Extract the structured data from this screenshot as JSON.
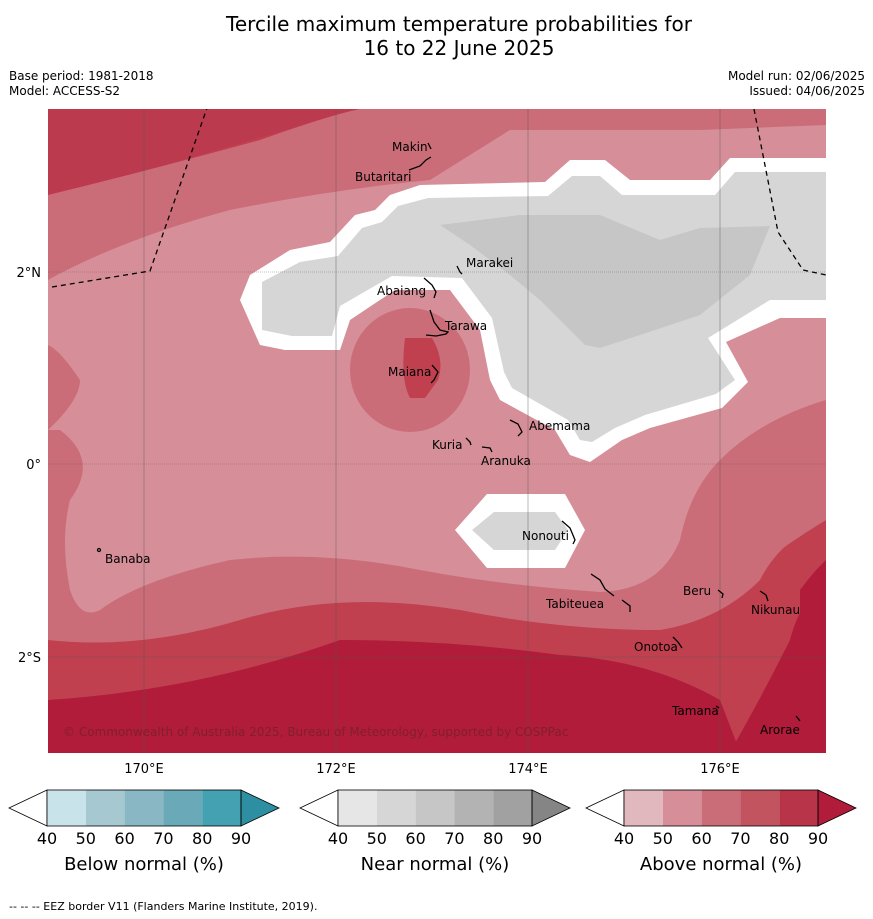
{
  "title_line1": "Tercile maximum temperature probabilities for",
  "title_line2": "16 to 22 June 2025",
  "base_period": "Base period: 1981-2018",
  "model": "Model: ACCESS-S2",
  "model_run": "Model run: 02/06/2025",
  "issued": "Issued: 04/06/2025",
  "copyright": "© Commonwealth of Australia 2025, Bureau of Meteorology, supported by COSPPac",
  "axis": {
    "lat_ticks": [
      "2°N",
      "0°",
      "2°S"
    ],
    "lon_ticks": [
      "170°E",
      "172°E",
      "174°E",
      "176°E"
    ]
  },
  "islands": [
    "Makin",
    "Butaritari",
    "Marakei",
    "Abaiang",
    "Tarawa",
    "Maiana",
    "Abemama",
    "Kuria",
    "Aranuka",
    "Nonouti",
    "Banaba",
    "Tabiteuea",
    "Beru",
    "Nikunau",
    "Onotoa",
    "Tamana",
    "Arorae"
  ],
  "colorbars": {
    "below": {
      "title": "Below normal (%)",
      "ticks": [
        "40",
        "50",
        "60",
        "70",
        "80",
        "90"
      ],
      "colors": [
        "#ffffff",
        "#c9e3ea",
        "#a6c9d1",
        "#89b8c4",
        "#6aaab8",
        "#43a1b1",
        "#2f8fa2"
      ]
    },
    "near": {
      "title": "Near normal (%)",
      "ticks": [
        "40",
        "50",
        "60",
        "70",
        "80",
        "90"
      ],
      "colors": [
        "#ffffff",
        "#e6e6e6",
        "#d6d6d6",
        "#c6c6c6",
        "#b3b3b3",
        "#a1a1a1",
        "#858585"
      ]
    },
    "above": {
      "title": "Above normal (%)",
      "ticks": [
        "40",
        "50",
        "60",
        "70",
        "80",
        "90"
      ],
      "colors": [
        "#ffffff",
        "#e2b8bf",
        "#d68f98",
        "#cb6d79",
        "#c25460",
        "#b83549",
        "#b01c3a"
      ]
    }
  },
  "footer": "--  --  -- EEZ border V11 (Flanders Marine Institute, 2019)."
}
